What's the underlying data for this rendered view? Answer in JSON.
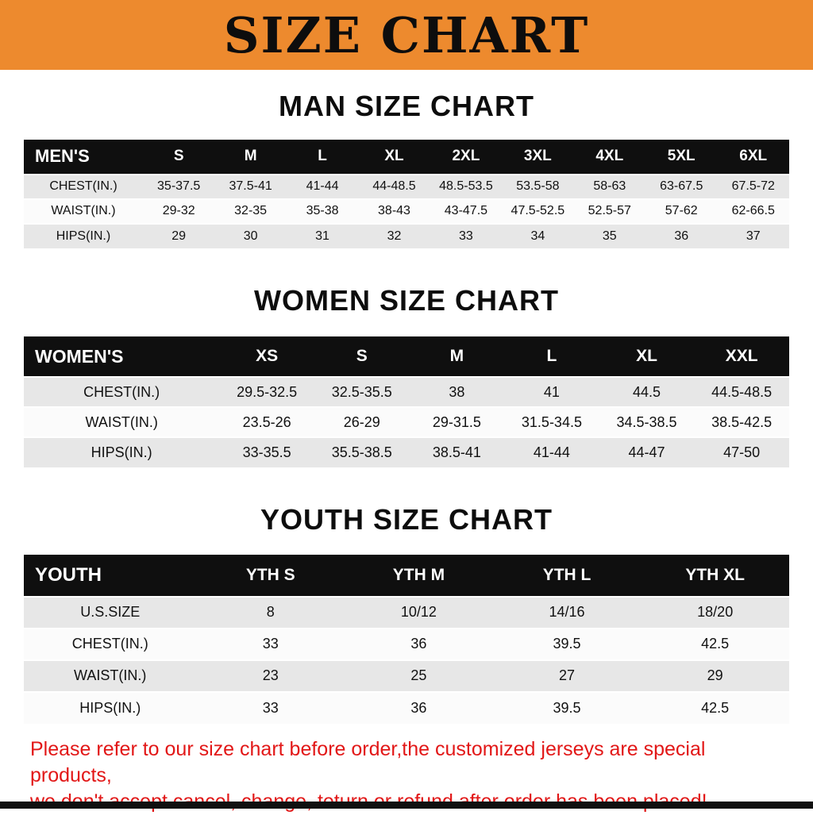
{
  "banner": {
    "title": "SIZE CHART"
  },
  "sections": [
    {
      "heading": "MAN SIZE CHART",
      "table": {
        "header": [
          "MEN'S",
          "S",
          "M",
          "L",
          "XL",
          "2XL",
          "3XL",
          "4XL",
          "5XL",
          "6XL"
        ],
        "rows": [
          [
            "CHEST(IN.)",
            "35-37.5",
            "37.5-41",
            "41-44",
            "44-48.5",
            "48.5-53.5",
            "53.5-58",
            "58-63",
            "63-67.5",
            "67.5-72"
          ],
          [
            "WAIST(IN.)",
            "29-32",
            "32-35",
            "35-38",
            "38-43",
            "43-47.5",
            "47.5-52.5",
            "52.5-57",
            "57-62",
            "62-66.5"
          ],
          [
            "HIPS(IN.)",
            "29",
            "30",
            "31",
            "32",
            "33",
            "34",
            "35",
            "36",
            "37"
          ]
        ]
      }
    },
    {
      "heading": "WOMEN SIZE CHART",
      "table": {
        "header": [
          "WOMEN'S",
          "XS",
          "S",
          "M",
          "L",
          "XL",
          "XXL"
        ],
        "rows": [
          [
            "CHEST(IN.)",
            "29.5-32.5",
            "32.5-35.5",
            "38",
            "41",
            "44.5",
            "44.5-48.5"
          ],
          [
            "WAIST(IN.)",
            "23.5-26",
            "26-29",
            "29-31.5",
            "31.5-34.5",
            "34.5-38.5",
            "38.5-42.5"
          ],
          [
            "HIPS(IN.)",
            "33-35.5",
            "35.5-38.5",
            "38.5-41",
            "41-44",
            "44-47",
            "47-50"
          ]
        ]
      }
    },
    {
      "heading": "YOUTH SIZE CHART",
      "table": {
        "header": [
          "YOUTH",
          "YTH S",
          "YTH M",
          "YTH L",
          "YTH XL"
        ],
        "rows": [
          [
            "U.S.SIZE",
            "8",
            "10/12",
            "14/16",
            "18/20"
          ],
          [
            "CHEST(IN.)",
            "33",
            "36",
            "39.5",
            "42.5"
          ],
          [
            "WAIST(IN.)",
            "23",
            "25",
            "27",
            "29"
          ],
          [
            "HIPS(IN.)",
            "33",
            "36",
            "39.5",
            "42.5"
          ]
        ]
      }
    }
  ],
  "footer": {
    "lines": [
      "Please refer to our size chart before order,the customized jerseys are special products,",
      "we don't accept cancel, change, teturn or refund after order has been placed!"
    ]
  },
  "colors": {
    "banner_bg": "#ED8A2E",
    "table_header_bg": "#0F0F0F",
    "row_alt_gray": "#E7E7E7",
    "note_red": "#E21717"
  }
}
